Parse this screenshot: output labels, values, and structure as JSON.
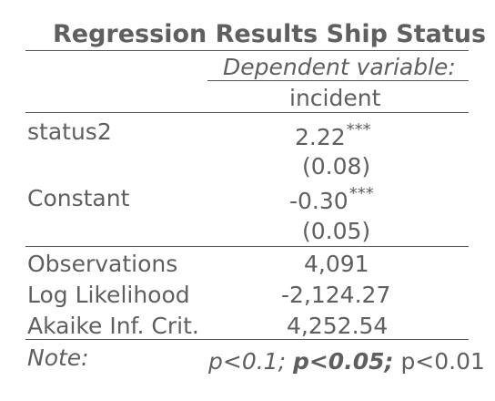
{
  "table": {
    "title": "Regression Results Ship Status",
    "dependent_label": "Dependent variable:",
    "dependent_name": "incident",
    "rows": [
      {
        "label": "status2",
        "estimate": "2.22",
        "stars": "***",
        "se": "(0.08)"
      },
      {
        "label": "Constant",
        "estimate": "-0.30",
        "stars": "***",
        "se": "(0.05)"
      }
    ],
    "stats": [
      {
        "label": "Observations",
        "value": "4,091"
      },
      {
        "label": "Log Likelihood",
        "value": "-2,124.27"
      },
      {
        "label": "Akaike Inf. Crit.",
        "value": "4,252.54"
      }
    ],
    "note": {
      "label": "Note:",
      "p1": "p<0.1;",
      "p2": "p<0.05;",
      "p3": "p<0.01"
    }
  }
}
